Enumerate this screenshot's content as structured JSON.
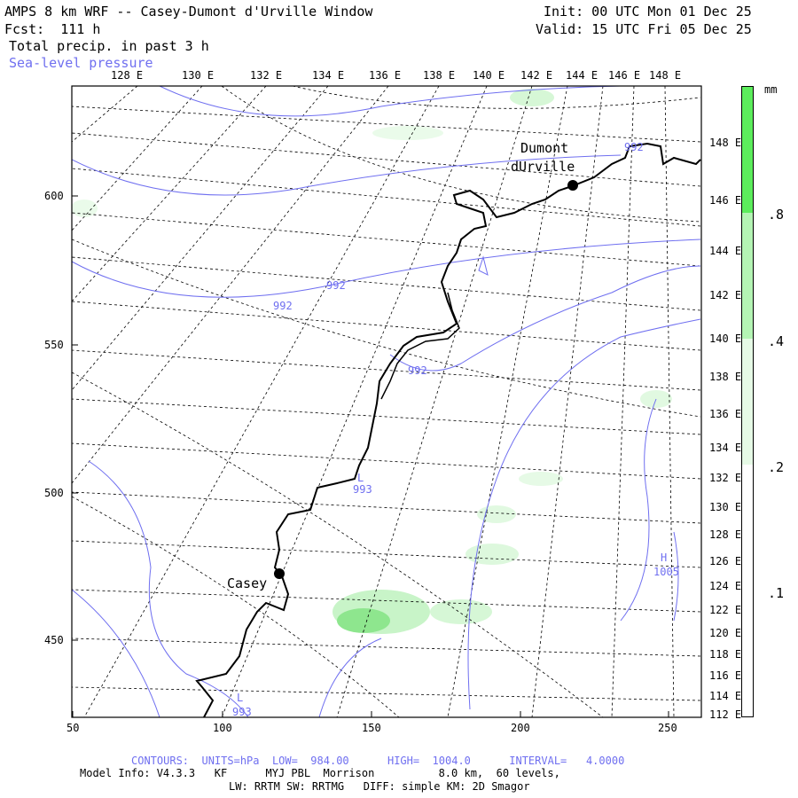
{
  "header": {
    "title": "AMPS 8 km WRF -- Casey-Dumont d'Urville Window",
    "forecast": "Fcst:  111 h",
    "field": "Total precip. in past 3 h",
    "overlay": "Sea-level pressure",
    "init": "Init: 00 UTC Mon 01 Dec 25",
    "valid": "Valid: 15 UTC Fri 05 Dec 25"
  },
  "map": {
    "top_lon_labels": [
      "128 E",
      "130 E",
      "132 E",
      "134 E",
      "136 E",
      "138 E",
      "140 E",
      "142 E",
      "144 E",
      "146 E",
      "148 E"
    ],
    "right_lon_labels": [
      "148 E",
      "146 E",
      "144 E",
      "142 E",
      "140 E",
      "138 E",
      "136 E",
      "134 E",
      "132 E",
      "130 E",
      "128 E",
      "126 E",
      "124 E",
      "122 E",
      "120 E",
      "118 E",
      "116 E",
      "114 E",
      "112 E"
    ],
    "x_axis_labels": [
      "50",
      "100",
      "150",
      "200",
      "250"
    ],
    "y_axis_labels": [
      "600",
      "550",
      "500",
      "450"
    ],
    "stations": [
      {
        "name_line1": "Dumont",
        "name_line2": "dUrville"
      },
      {
        "name_line1": "Casey"
      }
    ],
    "contour_labels": [
      "992",
      "992",
      "992",
      "992",
      "993",
      "1005",
      "993"
    ],
    "high_low_marks": [
      "L",
      "H",
      "L"
    ]
  },
  "colorbar": {
    "units": "mm",
    "labels": [
      ".8",
      ".4",
      ".2",
      ".1"
    ],
    "colors": {
      "c1": "#ffffff",
      "c2": "#e6fae6",
      "c3": "#b4f4b4",
      "c4": "#5ced5c"
    }
  },
  "footer": {
    "contours": "CONTOURS:  UNITS=hPa  LOW=  984.00      HIGH=  1004.0      INTERVAL=   4.0000",
    "model_info": "Model Info: V4.3.3   KF      MYJ PBL  Morrison          8.0 km,  60 levels,",
    "physics": "LW: RRTM SW: RRTMG   DIFF: simple KM: 2D Smagor"
  }
}
